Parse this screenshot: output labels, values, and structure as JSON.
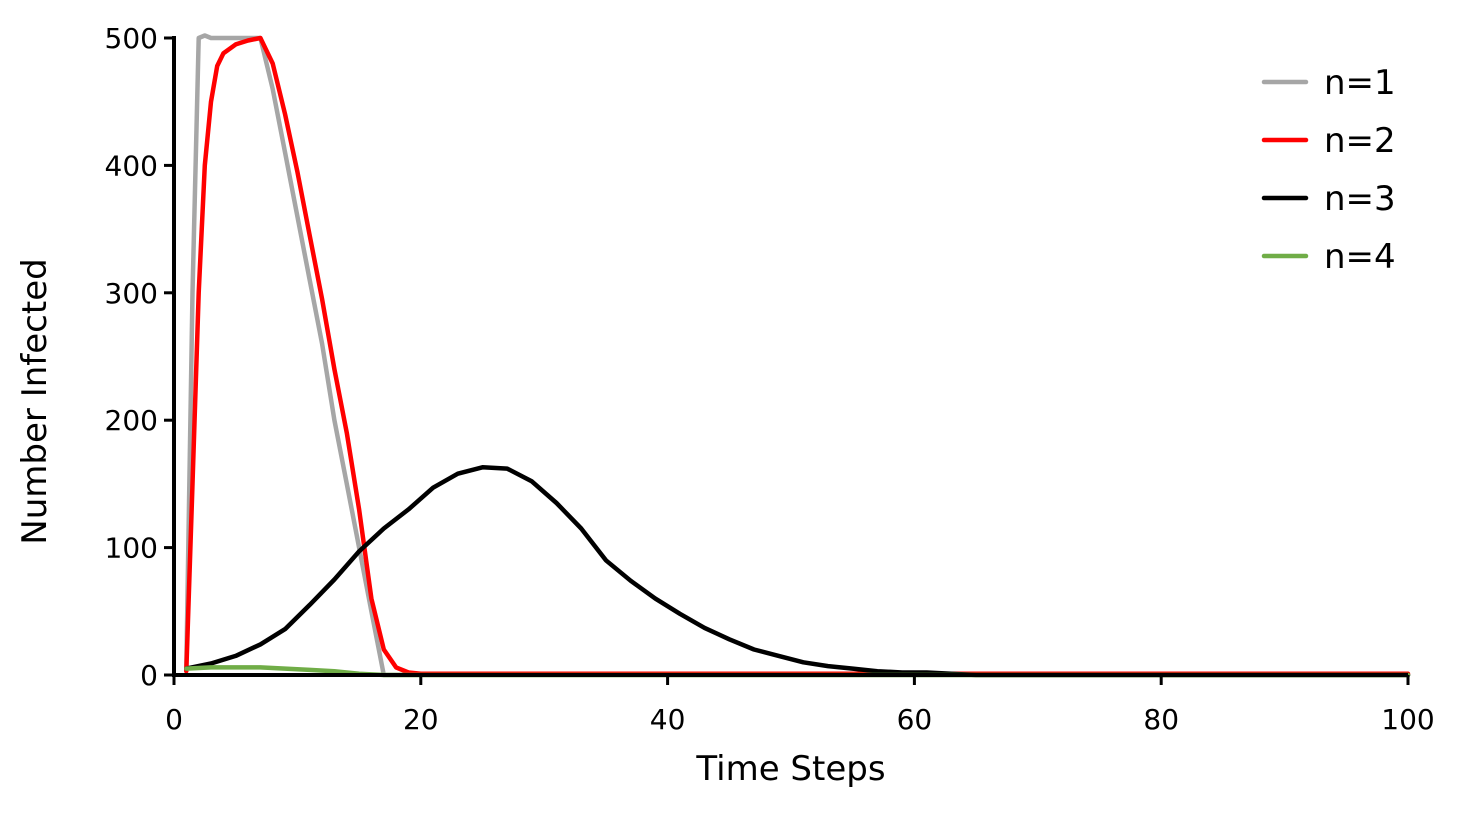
{
  "chart_data": {
    "type": "line",
    "title": "",
    "xlabel": "Time Steps",
    "ylabel": "Number Infected",
    "xlim": [
      0,
      100
    ],
    "ylim": [
      0,
      500
    ],
    "x_ticks": [
      0,
      20,
      40,
      60,
      80,
      100
    ],
    "y_ticks": [
      0,
      100,
      200,
      300,
      400,
      500
    ],
    "x_tick_labels": [
      "0",
      "20",
      "40",
      "60",
      "80",
      "100"
    ],
    "y_tick_labels": [
      "0",
      "100",
      "200",
      "300",
      "400",
      "500"
    ],
    "grid": false,
    "legend_position": "top-right",
    "series": [
      {
        "name": "n=1",
        "color": "#a6a6a6",
        "x": [
          1,
          1.5,
          2,
          2.5,
          3,
          4,
          5,
          6,
          7,
          8,
          9,
          10,
          11,
          12,
          13,
          14,
          15,
          16,
          17,
          18,
          20,
          30,
          40,
          50,
          60,
          70,
          80,
          90,
          100
        ],
        "y": [
          5,
          300,
          500,
          502,
          500,
          500,
          500,
          500,
          500,
          460,
          410,
          360,
          310,
          260,
          200,
          150,
          100,
          50,
          0,
          0,
          0,
          0,
          0,
          0,
          0,
          0,
          0,
          0,
          0
        ]
      },
      {
        "name": "n=2",
        "color": "#ff0000",
        "x": [
          1,
          1.5,
          2,
          2.5,
          3,
          3.5,
          4,
          5,
          6,
          7,
          8,
          9,
          10,
          11,
          12,
          13,
          14,
          15,
          16,
          17,
          18,
          19,
          20,
          30,
          40,
          50,
          60,
          70,
          80,
          90,
          100
        ],
        "y": [
          3,
          150,
          300,
          400,
          450,
          478,
          488,
          495,
          498,
          500,
          480,
          440,
          395,
          345,
          295,
          240,
          190,
          130,
          60,
          20,
          6,
          2,
          1,
          1,
          1,
          1,
          1,
          1,
          1,
          1,
          1
        ]
      },
      {
        "name": "n=3",
        "color": "#000000",
        "x": [
          1,
          3,
          5,
          7,
          9,
          11,
          13,
          15,
          17,
          19,
          21,
          23,
          25,
          27,
          29,
          31,
          33,
          35,
          37,
          39,
          41,
          43,
          45,
          47,
          49,
          51,
          53,
          55,
          57,
          59,
          61,
          63,
          65,
          70,
          80,
          90,
          100
        ],
        "y": [
          5,
          9,
          15,
          24,
          36,
          55,
          75,
          97,
          115,
          130,
          147,
          158,
          163,
          162,
          152,
          135,
          115,
          90,
          74,
          60,
          48,
          37,
          28,
          20,
          15,
          10,
          7,
          5,
          3,
          2,
          2,
          1,
          0,
          0,
          0,
          0,
          0
        ]
      },
      {
        "name": "n=4",
        "color": "#70ad47",
        "x": [
          1,
          3,
          5,
          7,
          9,
          11,
          13,
          15,
          17,
          20,
          30,
          40,
          50,
          60,
          70,
          80,
          90,
          100
        ],
        "y": [
          5,
          6,
          6,
          6,
          5,
          4,
          3,
          1,
          0,
          0,
          0,
          0,
          0,
          0,
          0,
          0,
          0,
          0
        ]
      }
    ]
  }
}
